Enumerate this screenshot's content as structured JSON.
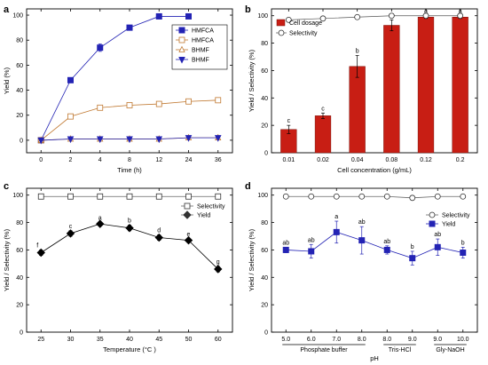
{
  "chart_data": [
    {
      "panel": "a",
      "type": "line",
      "xlabel": "Time (h)",
      "ylabel": "Yield (%)",
      "x": [
        "0",
        "2",
        "4",
        "8",
        "12",
        "24",
        "36"
      ],
      "ylim": [
        -10,
        105
      ],
      "yticks": [
        0,
        20,
        40,
        60,
        80,
        100
      ],
      "grid": false,
      "legend_position": "top-right",
      "series": [
        {
          "name": "HMFCA",
          "marker": "square-filled",
          "color": "#2323b4",
          "values": [
            0,
            48,
            74,
            90,
            99,
            99,
            null
          ],
          "errors": [
            0,
            1,
            3,
            1,
            0,
            0,
            null
          ]
        },
        {
          "name": "HMFCA",
          "marker": "square-open",
          "color": "#c07830",
          "values": [
            0,
            19,
            26,
            28,
            29,
            31,
            32
          ],
          "errors": [
            0,
            1,
            1,
            1,
            1,
            2,
            1
          ]
        },
        {
          "name": "BHMF",
          "marker": "triangle-open",
          "color": "#c07830",
          "values": [
            0,
            1,
            1,
            1,
            1,
            2,
            2
          ],
          "errors": [
            0,
            0,
            0,
            0,
            0,
            0,
            0
          ]
        },
        {
          "name": "BHMF",
          "marker": "triangle-down-filled",
          "color": "#2323b4",
          "values": [
            0,
            1,
            1,
            1,
            1,
            2,
            2
          ],
          "errors": [
            0,
            0,
            0,
            0,
            0,
            0,
            0
          ]
        }
      ]
    },
    {
      "panel": "b",
      "type": "bar",
      "xlabel": "Cell concentration (g/mL)",
      "ylabel": "Yield / Selectivity (%)",
      "categories": [
        "0.01",
        "0.02",
        "0.04",
        "0.08",
        "0.12",
        "0.2"
      ],
      "ylim": [
        0,
        105
      ],
      "yticks": [
        0,
        20,
        40,
        60,
        80,
        100
      ],
      "grid": false,
      "legend_position": "top-left",
      "series": [
        {
          "name": "Cell dosage",
          "kind": "bar",
          "color": "#c81e14",
          "values": [
            17,
            27,
            63,
            93,
            99,
            99
          ],
          "errors": [
            3,
            2,
            8,
            4,
            1,
            1
          ],
          "letters": [
            "c",
            "c",
            "b",
            "a",
            "a",
            "a"
          ]
        },
        {
          "name": "Selectivity",
          "kind": "line",
          "marker": "circle-open",
          "values": [
            97,
            98,
            99,
            100,
            100,
            100
          ]
        }
      ]
    },
    {
      "panel": "c",
      "type": "line",
      "xlabel": "Temperature (°C )",
      "ylabel": "Yield / Selectivity (%)",
      "x": [
        25,
        30,
        35,
        40,
        45,
        50,
        60
      ],
      "ylim": [
        0,
        105
      ],
      "yticks": [
        0,
        20,
        40,
        60,
        80,
        100
      ],
      "grid": false,
      "legend_position": "top-right",
      "series": [
        {
          "name": "Selectivity",
          "marker": "square-open",
          "values": [
            99,
            99,
            99,
            99,
            99,
            99,
            99
          ]
        },
        {
          "name": "Yield",
          "marker": "diamond-filled",
          "values": [
            58,
            72,
            79,
            76,
            69,
            67,
            46
          ],
          "errors": [
            2,
            2,
            1,
            2,
            2,
            1,
            2
          ],
          "letters": [
            "f",
            "c",
            "a",
            "b",
            "d",
            "e",
            "g"
          ]
        }
      ]
    },
    {
      "panel": "d",
      "type": "line",
      "xlabel": "pH",
      "ylabel": "Yield / Selectivity (%)",
      "x": [
        "5.0",
        "6.0",
        "7.0",
        "8.0",
        "8.0",
        "9.0",
        "9.0",
        "10.0"
      ],
      "buffer_groups": [
        {
          "label": "Phosphate buffer",
          "from": 0,
          "to": 3
        },
        {
          "label": "Tris-HCl",
          "from": 4,
          "to": 5
        },
        {
          "label": "Gly-NaOH",
          "from": 6,
          "to": 7
        }
      ],
      "ylim": [
        0,
        105
      ],
      "yticks": [
        0,
        20,
        40,
        60,
        80,
        100
      ],
      "grid": false,
      "legend_position": "top-right",
      "series": [
        {
          "name": "Selectivity",
          "marker": "circle-open",
          "values": [
            99,
            99,
            99,
            99,
            99,
            98,
            99,
            99
          ]
        },
        {
          "name": "Yield",
          "marker": "square-filled",
          "color": "#2323b4",
          "values": [
            60,
            59,
            73,
            67,
            60,
            54,
            62,
            58
          ],
          "errors": [
            2,
            5,
            8,
            10,
            3,
            5,
            6,
            4
          ],
          "letters": [
            "ab",
            "ab",
            "a",
            "ab",
            "ab",
            "b",
            "ab",
            "b"
          ]
        }
      ]
    }
  ]
}
